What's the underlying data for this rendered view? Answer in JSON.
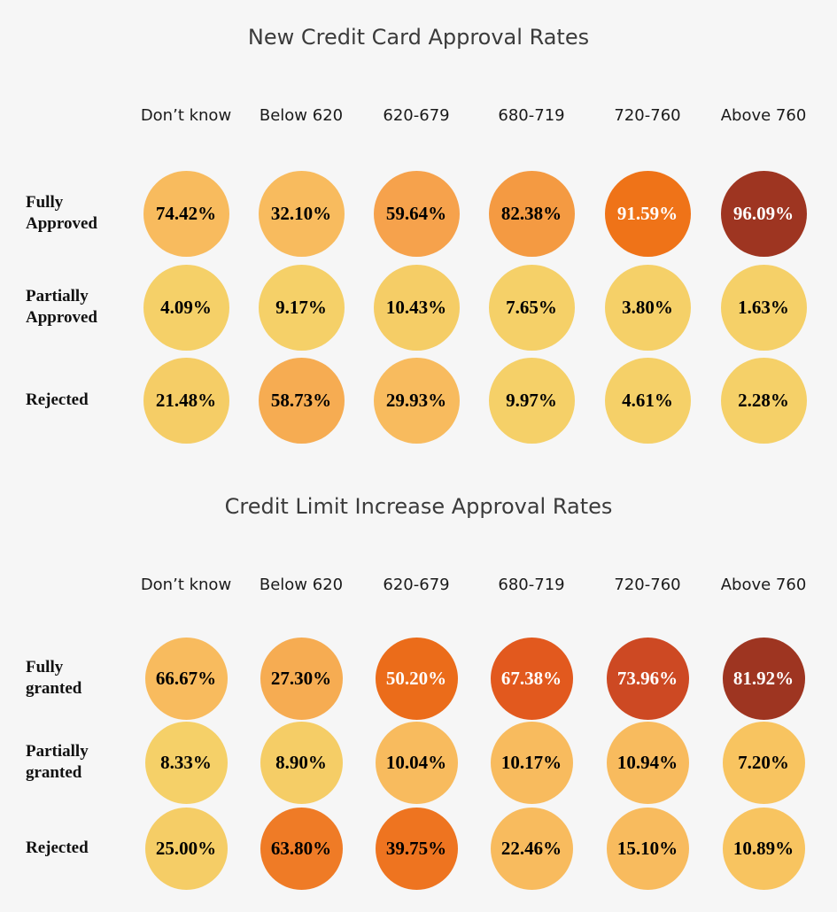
{
  "chart_data": [
    {
      "type": "heatmap",
      "title": "New Credit Card Approval Rates",
      "columns": [
        "Don’t know",
        "Below 620",
        "620-679",
        "680-719",
        "720-760",
        "Above 760"
      ],
      "rows": [
        {
          "label": "Fully\nApproved",
          "values": [
            "74.42%",
            "32.10%",
            "59.64%",
            "82.38%",
            "91.59%",
            "96.09%"
          ],
          "colors": [
            "#f8bb5e",
            "#f8bb5e",
            "#f6a24c",
            "#f49a42",
            "#ef7318",
            "#9e3521"
          ],
          "text_colors": [
            "#000000",
            "#000000",
            "#000000",
            "#000000",
            "#ffffff",
            "#ffffff"
          ]
        },
        {
          "label": "Partially\nApproved",
          "values": [
            "4.09%",
            "9.17%",
            "10.43%",
            "7.65%",
            "3.80%",
            "1.63%"
          ],
          "colors": [
            "#f5d068",
            "#f5d068",
            "#f5cd66",
            "#f5d068",
            "#f5d068",
            "#f5d068"
          ],
          "text_colors": [
            "#000000",
            "#000000",
            "#000000",
            "#000000",
            "#000000",
            "#000000"
          ]
        },
        {
          "label": "Rejected",
          "values": [
            "21.48%",
            "58.73%",
            "29.93%",
            "9.97%",
            "4.61%",
            "2.28%"
          ],
          "colors": [
            "#f5cd66",
            "#f6ac52",
            "#f8bb5e",
            "#f5d068",
            "#f5d068",
            "#f5d068"
          ],
          "text_colors": [
            "#000000",
            "#000000",
            "#000000",
            "#000000",
            "#000000",
            "#000000"
          ]
        }
      ]
    },
    {
      "type": "heatmap",
      "title": "Credit Limit Increase Approval Rates",
      "columns": [
        "Don’t know",
        "Below 620",
        "620-679",
        "680-719",
        "720-760",
        "Above 760"
      ],
      "rows": [
        {
          "label": "Fully\ngranted",
          "values": [
            "66.67%",
            "27.30%",
            "50.20%",
            "67.38%",
            "73.96%",
            "81.92%"
          ],
          "colors": [
            "#f8bb5e",
            "#f6ac52",
            "#eb6c1a",
            "#e2591e",
            "#cd4923",
            "#9e3521"
          ],
          "text_colors": [
            "#000000",
            "#000000",
            "#ffffff",
            "#ffffff",
            "#ffffff",
            "#ffffff"
          ]
        },
        {
          "label": "Partially\ngranted",
          "values": [
            "8.33%",
            "8.90%",
            "10.04%",
            "10.17%",
            "10.94%",
            "7.20%"
          ],
          "colors": [
            "#f5d068",
            "#f5cd66",
            "#f8bb5e",
            "#f8bb5e",
            "#f8bb5e",
            "#f8c460"
          ],
          "text_colors": [
            "#000000",
            "#000000",
            "#000000",
            "#000000",
            "#000000",
            "#000000"
          ]
        },
        {
          "label": "Rejected",
          "values": [
            "25.00%",
            "63.80%",
            "39.75%",
            "22.46%",
            "15.10%",
            "10.89%"
          ],
          "colors": [
            "#f5cd66",
            "#ef7b26",
            "#ee7420",
            "#f8bb5e",
            "#f8bb5e",
            "#f8c460"
          ],
          "text_colors": [
            "#000000",
            "#000000",
            "#000000",
            "#000000",
            "#000000",
            "#000000"
          ]
        }
      ]
    }
  ]
}
